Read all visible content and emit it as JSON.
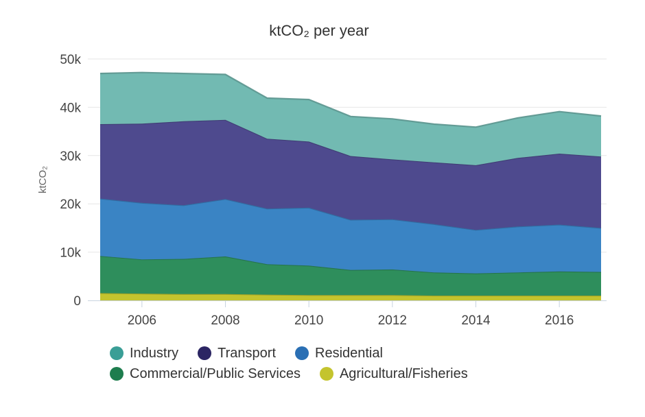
{
  "chart_data": {
    "type": "area",
    "stacked": true,
    "title": "ktCO₂ per year",
    "xlabel": "",
    "ylabel": "ktCO₂",
    "x": [
      2005,
      2006,
      2007,
      2008,
      2009,
      2010,
      2011,
      2012,
      2013,
      2014,
      2015,
      2016,
      2017
    ],
    "xticks": [
      "2006",
      "2008",
      "2010",
      "2012",
      "2014",
      "2016"
    ],
    "yticks": [
      "0",
      "10k",
      "20k",
      "30k",
      "40k",
      "50k"
    ],
    "ylim": [
      0,
      50000
    ],
    "grid": true,
    "legend_position": "bottom",
    "series": [
      {
        "name": "Agricultural/Fisheries",
        "color": "#c4c42e",
        "values": [
          1500,
          1400,
          1300,
          1300,
          1200,
          1100,
          1100,
          1100,
          1000,
          1000,
          1000,
          1000,
          1000
        ]
      },
      {
        "name": "Commercial/Public Services",
        "color": "#2e8e5c",
        "values": [
          7700,
          7100,
          7300,
          7800,
          6300,
          6100,
          5200,
          5300,
          4800,
          4600,
          4800,
          5000,
          4900
        ]
      },
      {
        "name": "Residential",
        "color": "#3a84c4",
        "values": [
          11900,
          11700,
          11100,
          11900,
          11500,
          12000,
          10400,
          10400,
          10000,
          9000,
          9500,
          9700,
          9100
        ]
      },
      {
        "name": "Transport",
        "color": "#4e4a8e",
        "values": [
          15400,
          16400,
          17400,
          16400,
          14500,
          13700,
          13200,
          12400,
          12800,
          13400,
          14200,
          14700,
          14800
        ]
      },
      {
        "name": "Industry",
        "color": "#72bab2",
        "values": [
          10500,
          10600,
          9900,
          9400,
          8400,
          8700,
          8200,
          8400,
          7900,
          7900,
          8300,
          8700,
          8400
        ]
      }
    ]
  },
  "legend": {
    "rows": [
      [
        {
          "label": "Industry",
          "color": "#3a9e96"
        },
        {
          "label": "Transport",
          "color": "#2b2563"
        },
        {
          "label": "Residential",
          "color": "#2a6fb4"
        }
      ],
      [
        {
          "label": "Commercial/Public Services",
          "color": "#1e7d4e"
        },
        {
          "label": "Agricultural/Fisheries",
          "color": "#c4c42e"
        }
      ]
    ]
  }
}
